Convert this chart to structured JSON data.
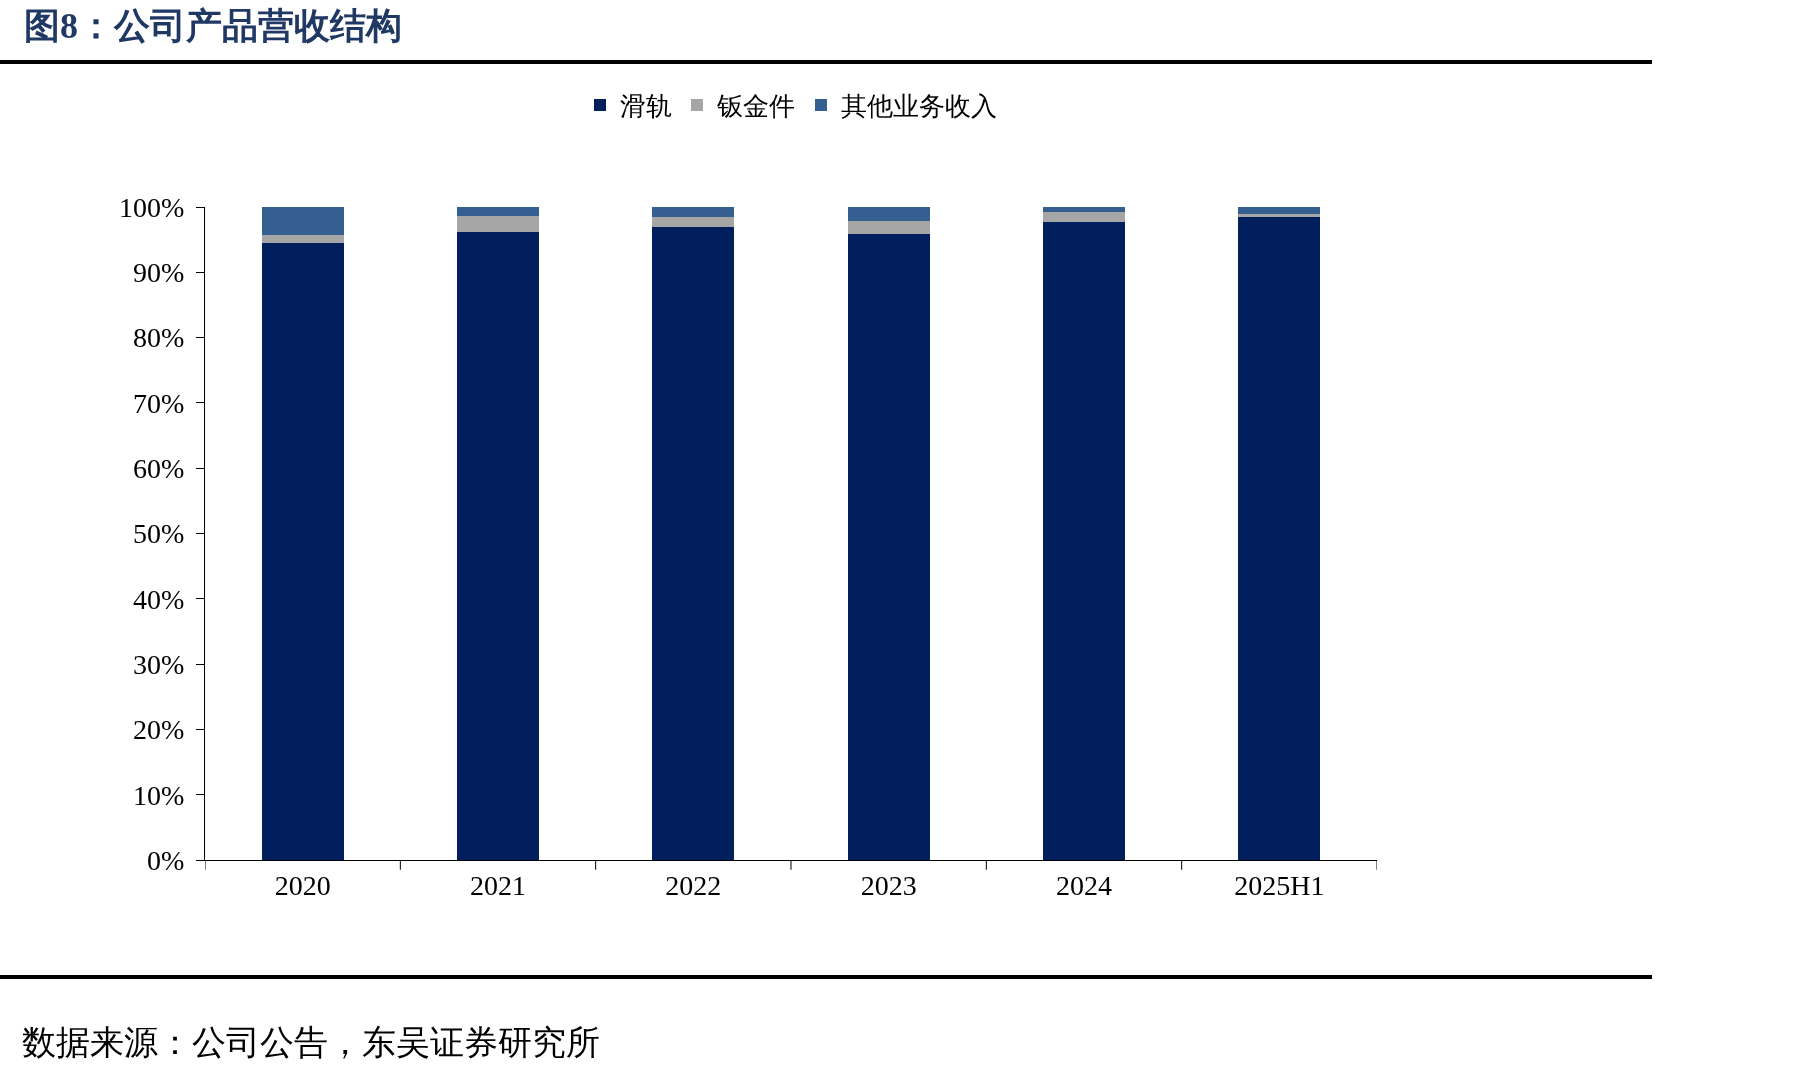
{
  "chart_data": {
    "type": "bar",
    "title": "图8：公司产品营收结构",
    "categories": [
      "2020",
      "2021",
      "2022",
      "2023",
      "2024",
      "2025H1"
    ],
    "series": [
      {
        "name": "滑轨",
        "color": "#001f5c",
        "values": [
          94.5,
          96.2,
          96.9,
          95.8,
          97.7,
          98.4
        ]
      },
      {
        "name": "钣金件",
        "color": "#a6a6a6",
        "values": [
          1.2,
          2.4,
          1.6,
          2.1,
          1.5,
          0.6
        ]
      },
      {
        "name": "其他业务收入",
        "color": "#365f91",
        "values": [
          4.3,
          1.4,
          1.5,
          2.1,
          0.8,
          1.0
        ]
      }
    ],
    "stacked": true,
    "ylim": [
      0,
      100
    ],
    "yticks": [
      {
        "value": 0,
        "label": "0%"
      },
      {
        "value": 10,
        "label": "10%"
      },
      {
        "value": 20,
        "label": "20%"
      },
      {
        "value": 30,
        "label": "30%"
      },
      {
        "value": 40,
        "label": "40%"
      },
      {
        "value": 50,
        "label": "50%"
      },
      {
        "value": 60,
        "label": "60%"
      },
      {
        "value": 70,
        "label": "70%"
      },
      {
        "value": 80,
        "label": "80%"
      },
      {
        "value": 90,
        "label": "90%"
      },
      {
        "value": 100,
        "label": "100%"
      }
    ],
    "grid": false,
    "legend": "top",
    "annotations": [
      "数据来源：公司公告，东吴证券研究所"
    ]
  }
}
